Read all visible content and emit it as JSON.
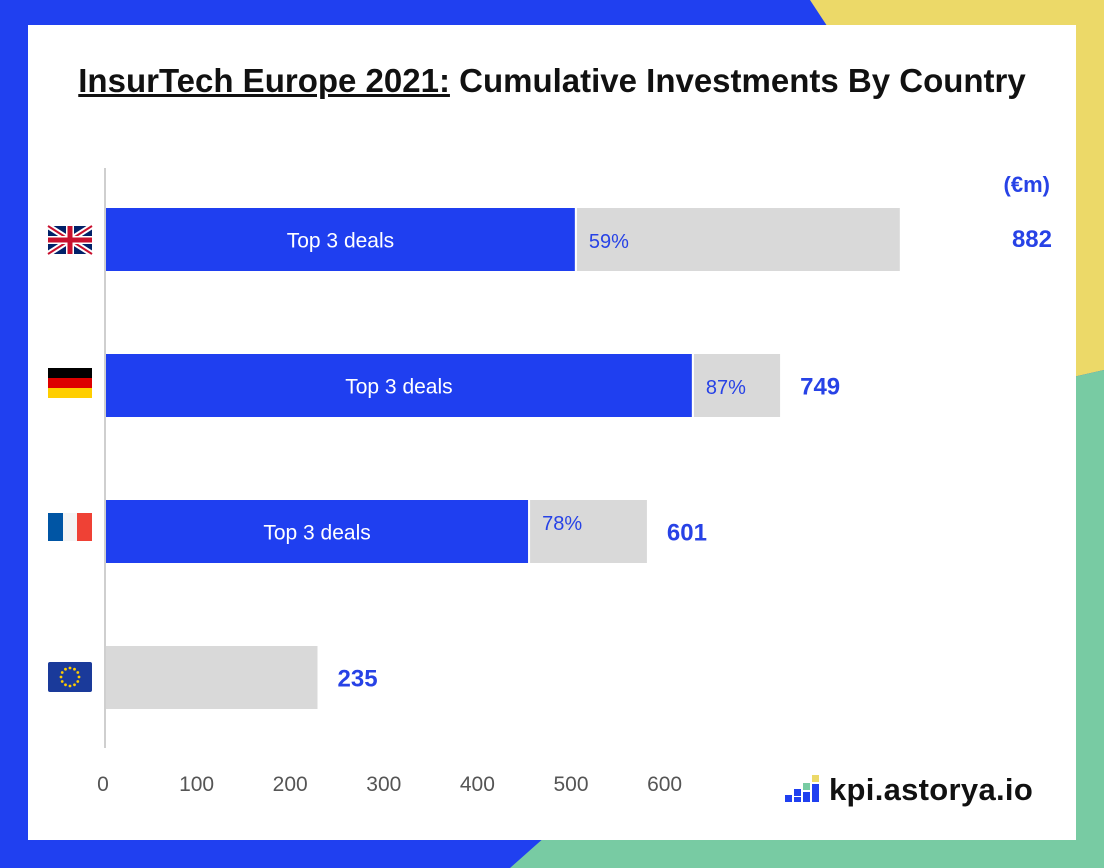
{
  "title": {
    "underlined": "InsurTech Europe 2021:",
    "rest": " Cumulative Investments By Country"
  },
  "unit": "(€m)",
  "logo": {
    "text": "kpi.astorya.io",
    "icon": "bar-chart-logo-icon"
  },
  "colors": {
    "blue": "#1f3ff0",
    "grey": "#d9d9d9",
    "yellow": "#ecd968",
    "green": "#78cba3",
    "pct_text": "#2742e6",
    "axis": "#555555"
  },
  "chart_data": {
    "type": "bar",
    "orientation": "horizontal",
    "stacked": true,
    "categories": [
      "UK",
      "Germany",
      "France",
      "EU"
    ],
    "category_icons": [
      "uk-flag-icon",
      "germany-flag-icon",
      "france-flag-icon",
      "eu-flag-icon"
    ],
    "series": [
      {
        "values": [
          521,
          651,
          469,
          null
        ],
        "bar_label": "Top 3 deals"
      },
      {
        "values": [
          361,
          98,
          132,
          235
        ]
      }
    ],
    "totals": [
      882,
      749,
      601,
      235
    ],
    "total_labels": [
      "882",
      "749",
      "601",
      "235"
    ],
    "top3_share_labels": [
      "59%",
      "87%",
      "78%",
      ""
    ],
    "x_ticks": [
      0,
      100,
      200,
      300,
      400,
      500,
      600
    ],
    "xlim": [
      0,
      882
    ],
    "grid": false
  }
}
